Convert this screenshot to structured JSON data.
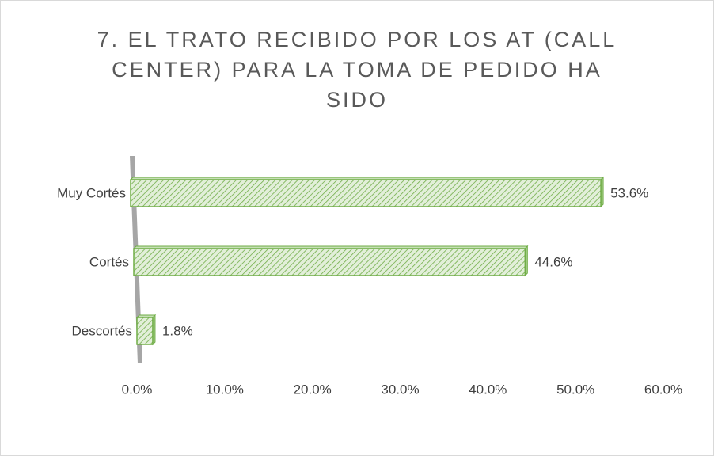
{
  "chart_data": {
    "type": "bar",
    "orientation": "horizontal",
    "title": "7. EL TRATO RECIBIDO POR LOS AT (CALL CENTER) PARA LA TOMA DE PEDIDO HA SIDO",
    "categories": [
      "Muy Cortés",
      "Cortés",
      "Descortés"
    ],
    "values": [
      53.6,
      44.6,
      1.8
    ],
    "value_labels": [
      "53.6%",
      "44.6%",
      "1.8%"
    ],
    "color": "#70ad47",
    "xlim": [
      0,
      60
    ],
    "xticks": [
      {
        "value": 0,
        "label": "0.0%"
      },
      {
        "value": 10,
        "label": "10.0%"
      },
      {
        "value": 20,
        "label": "20.0%"
      },
      {
        "value": 30,
        "label": "30.0%"
      },
      {
        "value": 40,
        "label": "40.0%"
      },
      {
        "value": 50,
        "label": "50.0%"
      },
      {
        "value": 60,
        "label": "60.0%"
      }
    ],
    "grid": false
  }
}
